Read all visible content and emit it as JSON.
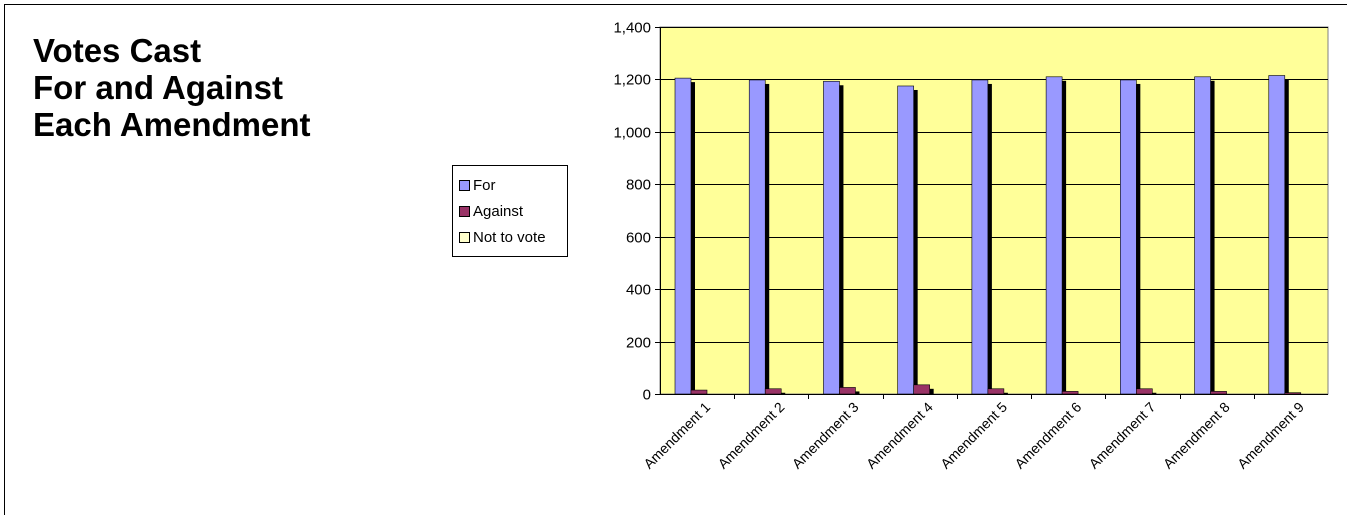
{
  "title_lines": [
    "Votes Cast",
    "For and Against",
    "Each Amendment"
  ],
  "colors": {
    "plot_background": "#ffff99",
    "for": "#9999ff",
    "against": "#993366",
    "not_to_vote": "#ffffcc",
    "shadow": "#000000"
  },
  "chart_data": {
    "type": "bar",
    "title": "Votes Cast For and Against Each Amendment",
    "categories": [
      "Amendment 1",
      "Amendment 2",
      "Amendment 3",
      "Amendment 4",
      "Amendment 5",
      "Amendment 6",
      "Amendment 7",
      "Amendment 8",
      "Amendment 9"
    ],
    "series": [
      {
        "name": "For",
        "values": [
          1205,
          1198,
          1193,
          1175,
          1198,
          1210,
          1198,
          1210,
          1215
        ]
      },
      {
        "name": "Against",
        "values": [
          15,
          20,
          25,
          35,
          20,
          10,
          20,
          10,
          5
        ]
      },
      {
        "name": "Not to vote",
        "values": [
          0,
          0,
          0,
          0,
          0,
          0,
          0,
          0,
          0
        ]
      }
    ],
    "ylim": [
      0,
      1400
    ],
    "yticks": [
      0,
      200,
      400,
      600,
      800,
      1000,
      1200,
      1400
    ],
    "ytick_labels": [
      "0",
      "200",
      "400",
      "600",
      "800",
      "1,000",
      "1,200",
      "1,400"
    ],
    "grid": true,
    "legend_position": "left"
  }
}
